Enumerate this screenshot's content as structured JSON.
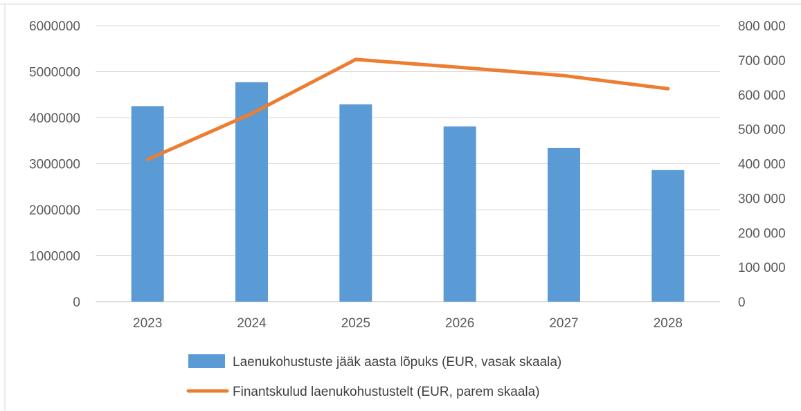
{
  "chart_data": {
    "type": "bar",
    "categories": [
      "2023",
      "2024",
      "2025",
      "2026",
      "2027",
      "2028"
    ],
    "series": [
      {
        "name": "Laenukohustuste jääk aasta lõpuks (EUR, vasak skaala)",
        "type": "bar",
        "axis": "left",
        "color": "#5b9bd5",
        "values": [
          4250000,
          4770000,
          4290000,
          3810000,
          3340000,
          2860000
        ]
      },
      {
        "name": "Finantskulud laenukohustustelt (EUR, parem skaala)",
        "type": "line",
        "axis": "right",
        "color": "#ed7d31",
        "values": [
          412000,
          545000,
          702000,
          679000,
          655000,
          617000
        ]
      }
    ],
    "y_left": {
      "ylim": [
        0,
        6000000
      ],
      "ticks": [
        0,
        1000000,
        2000000,
        3000000,
        4000000,
        5000000,
        6000000
      ],
      "tick_labels": [
        "0",
        "1000000",
        "2000000",
        "3000000",
        "4000000",
        "5000000",
        "6000000"
      ]
    },
    "y_right": {
      "ylim": [
        0,
        800000
      ],
      "ticks": [
        0,
        100000,
        200000,
        300000,
        400000,
        500000,
        600000,
        700000,
        800000
      ],
      "tick_labels": [
        "0",
        "100 000",
        "200 000",
        "300 000",
        "400 000",
        "500 000",
        "600 000",
        "700 000",
        "800 000"
      ]
    },
    "grid": true,
    "legend_position": "bottom"
  }
}
